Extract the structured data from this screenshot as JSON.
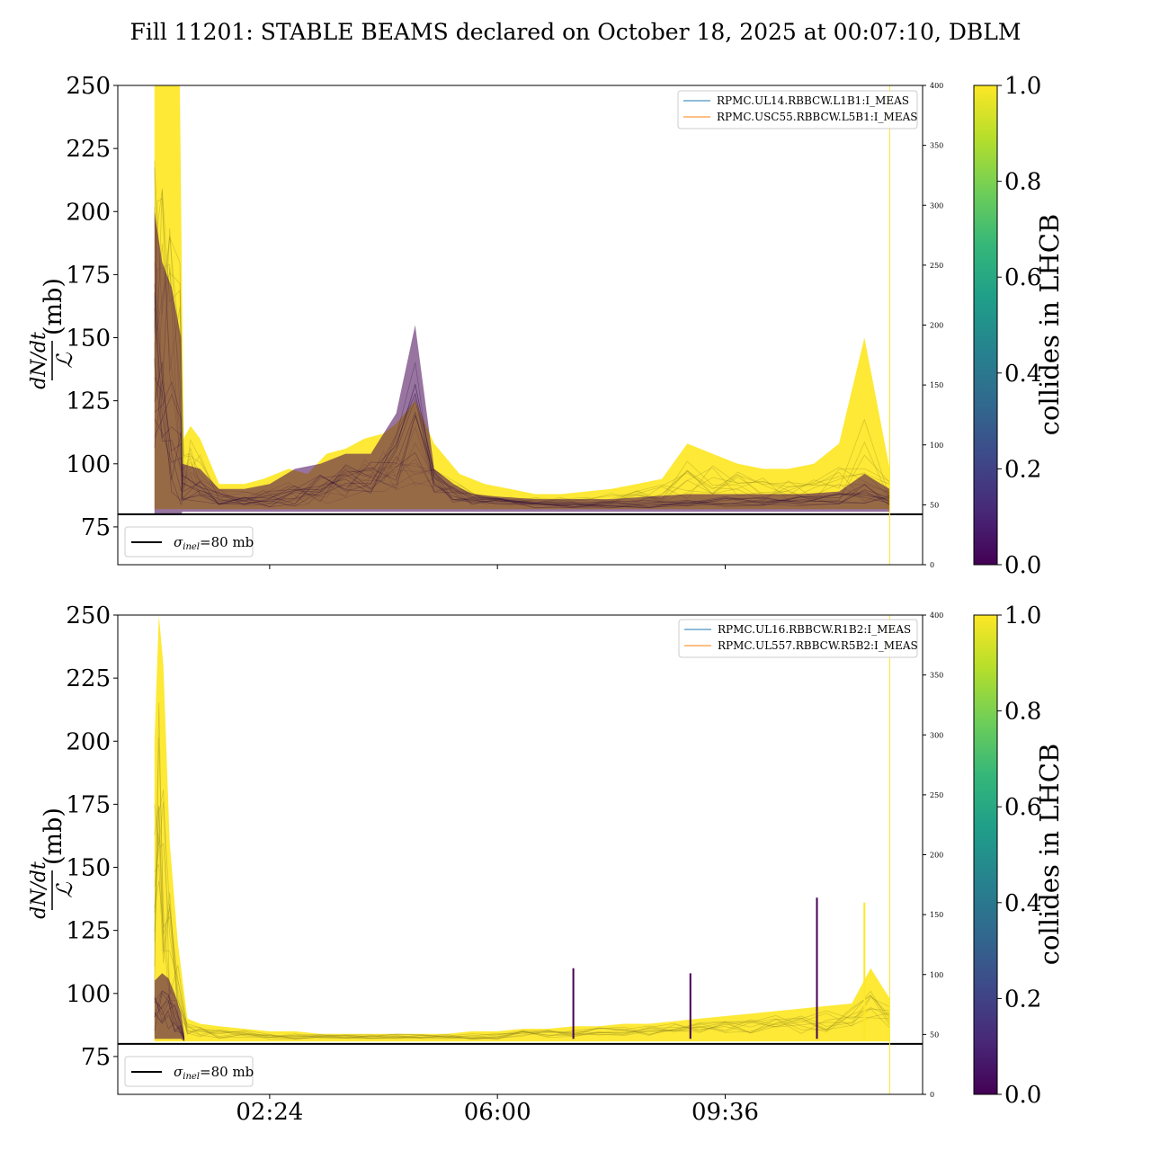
{
  "title": "Fill 11201: STABLE BEAMS declared on October 18, 2025 at 00:07:10, DBLM",
  "colors": {
    "viridis": [
      "#440154",
      "#482878",
      "#3e4989",
      "#31688e",
      "#26828e",
      "#1f9e89",
      "#35b779",
      "#6ece58",
      "#b5de2b",
      "#fde725"
    ],
    "collides": "#fde725",
    "non_collides": "#440154",
    "legend_line_blue": "#1f77b4",
    "legend_line_orange": "#ff7f0e",
    "reference_line": "#000000",
    "vertical_marker": "#fde725"
  },
  "chart_data": [
    {
      "type": "line",
      "panel": "top",
      "ylabel_fraction_top": "dN/dt",
      "ylabel_fraction_bottom": "ℒ",
      "ylabel_unit": "(mb)",
      "ylim": [
        60,
        250
      ],
      "yticks": [
        75,
        100,
        125,
        150,
        175,
        200,
        225,
        250
      ],
      "xlim": [
        0,
        12.72
      ],
      "xticks": [
        {
          "x": 2.4,
          "label": "02:24"
        },
        {
          "x": 6.0,
          "label": "06:00"
        },
        {
          "x": 9.6,
          "label": "09:36"
        }
      ],
      "xtick_labels_shown": false,
      "secondary_y": {
        "ylim": [
          0,
          400
        ],
        "yticks": [
          0,
          50,
          100,
          150,
          200,
          250,
          300,
          350,
          400
        ]
      },
      "reference_line": {
        "y": 80,
        "label_symbol": "σ",
        "label_subscript": "inel",
        "label_value": "=80 mb"
      },
      "vertical_marker_x": 12.2,
      "legend": [
        {
          "name": "RPMC.UL14.RBBCW.L1B1:I_MEAS",
          "color": "#1f77b4"
        },
        {
          "name": "RPMC.USC55.RBBCW.L5B1:I_MEAS",
          "color": "#ff7f0e"
        }
      ],
      "colorbar": {
        "label": "collides in LHCB",
        "range": [
          0.0,
          1.0
        ],
        "ticks": [
          "0.0",
          "0.2",
          "0.4",
          "0.6",
          "0.8",
          "1.0"
        ]
      },
      "series": [
        {
          "collides": 1,
          "x": [
            0.58,
            0.62,
            0.7,
            0.82,
            0.98,
            1.04,
            1.15,
            1.3,
            1.6,
            2.0,
            2.3,
            2.7,
            3.0,
            3.3,
            3.6,
            3.9,
            4.2,
            4.4,
            4.7,
            5.0,
            5.4,
            5.8,
            6.2,
            6.6,
            7.0,
            7.4,
            7.8,
            8.2,
            8.6,
            9.0,
            9.4,
            9.8,
            10.2,
            10.6,
            11.0,
            11.4,
            11.8,
            12.2
          ],
          "y_min": [
            82,
            82,
            82,
            82,
            82,
            82,
            82,
            82,
            82,
            82,
            82,
            82,
            82,
            82,
            82,
            82,
            82,
            82,
            82,
            82,
            82,
            82,
            82,
            82,
            82,
            82,
            82,
            82,
            82,
            82,
            82,
            82,
            82,
            82,
            82,
            82,
            82,
            82
          ],
          "y_max": [
            250,
            250,
            250,
            250,
            250,
            110,
            115,
            110,
            92,
            92,
            94,
            98,
            96,
            104,
            106,
            110,
            112,
            116,
            125,
            108,
            96,
            92,
            90,
            88,
            88,
            89,
            90,
            92,
            94,
            108,
            104,
            100,
            98,
            98,
            100,
            108,
            150,
            98
          ],
          "y_mid": [
            180,
            170,
            160,
            150,
            140,
            96,
            100,
            95,
            87,
            86,
            86,
            88,
            88,
            90,
            92,
            95,
            96,
            98,
            102,
            94,
            88,
            86,
            85,
            85,
            85,
            85,
            86,
            87,
            88,
            94,
            94,
            92,
            90,
            90,
            90,
            92,
            100,
            90
          ]
        },
        {
          "collides": 0,
          "x": [
            0.58,
            0.7,
            0.85,
            1.0,
            1.02,
            1.3,
            1.6,
            2.0,
            2.4,
            2.8,
            3.2,
            3.6,
            4.0,
            4.4,
            4.7,
            5.0,
            5.3,
            5.6,
            6.0,
            6.6,
            7.2,
            7.8,
            8.4,
            9.0,
            9.6,
            10.2,
            10.8,
            11.4,
            11.8,
            12.2
          ],
          "y_min": [
            80,
            80,
            80,
            80,
            81,
            81,
            81,
            81,
            81,
            81,
            81,
            81,
            81,
            81,
            81,
            81,
            81,
            81,
            81,
            81,
            81,
            81,
            81,
            81,
            81,
            81,
            81,
            81,
            81,
            81
          ],
          "y_max": [
            200,
            180,
            170,
            150,
            100,
            98,
            90,
            90,
            92,
            98,
            100,
            104,
            104,
            120,
            155,
            98,
            92,
            88,
            87,
            86,
            86,
            86,
            87,
            88,
            88,
            88,
            88,
            89,
            96,
            90
          ],
          "y_mid": [
            140,
            120,
            110,
            100,
            90,
            90,
            86,
            86,
            86,
            88,
            90,
            94,
            94,
            100,
            120,
            92,
            88,
            86,
            85,
            84,
            84,
            84,
            84,
            85,
            85,
            85,
            85,
            86,
            88,
            86
          ]
        }
      ]
    },
    {
      "type": "line",
      "panel": "bottom",
      "ylabel_fraction_top": "dN/dt",
      "ylabel_fraction_bottom": "ℒ",
      "ylabel_unit": "(mb)",
      "ylim": [
        60,
        250
      ],
      "yticks": [
        75,
        100,
        125,
        150,
        175,
        200,
        225,
        250
      ],
      "xlim": [
        0,
        12.72
      ],
      "xticks": [
        {
          "x": 2.4,
          "label": "02:24"
        },
        {
          "x": 6.0,
          "label": "06:00"
        },
        {
          "x": 9.6,
          "label": "09:36"
        }
      ],
      "xtick_labels_shown": true,
      "secondary_y": {
        "ylim": [
          0,
          400
        ],
        "yticks": [
          0,
          50,
          100,
          150,
          200,
          250,
          300,
          350,
          400
        ]
      },
      "reference_line": {
        "y": 80,
        "label_symbol": "σ",
        "label_subscript": "inel",
        "label_value": "=80 mb"
      },
      "vertical_marker_x": 12.2,
      "legend": [
        {
          "name": "RPMC.UL16.RBBCW.R1B2:I_MEAS",
          "color": "#1f77b4"
        },
        {
          "name": "RPMC.UL557.RBBCW.R5B2:I_MEAS",
          "color": "#ff7f0e"
        }
      ],
      "colorbar": {
        "label": "collides in LHCB",
        "range": [
          0.0,
          1.0
        ],
        "ticks": [
          "0.0",
          "0.2",
          "0.4",
          "0.6",
          "0.8",
          "1.0"
        ]
      },
      "series": [
        {
          "collides": 1,
          "x": [
            0.58,
            0.65,
            0.72,
            0.82,
            0.95,
            1.1,
            1.3,
            1.6,
            2.0,
            2.4,
            2.8,
            3.2,
            3.6,
            4.0,
            4.4,
            4.8,
            5.2,
            5.6,
            6.0,
            6.4,
            6.8,
            7.2,
            7.6,
            8.0,
            8.4,
            8.8,
            9.2,
            9.6,
            10.0,
            10.4,
            10.8,
            11.2,
            11.6,
            11.9,
            12.2
          ],
          "y_min": [
            81,
            81,
            81,
            81,
            81,
            81,
            81,
            81,
            81,
            81,
            81,
            81,
            81,
            81,
            81,
            81,
            81,
            81,
            81,
            81,
            81,
            81,
            81,
            81,
            81,
            81,
            81,
            81,
            81,
            81,
            81,
            81,
            81,
            81,
            81
          ],
          "y_max": [
            200,
            250,
            230,
            160,
            120,
            90,
            88,
            87,
            86,
            85,
            85,
            84,
            84,
            84,
            84,
            84,
            84,
            85,
            85,
            86,
            86,
            87,
            87,
            88,
            88,
            89,
            90,
            91,
            92,
            93,
            94,
            95,
            96,
            110,
            98
          ],
          "y_mid": [
            140,
            170,
            150,
            120,
            100,
            86,
            85,
            84,
            84,
            83,
            83,
            83,
            83,
            83,
            83,
            83,
            83,
            83,
            83,
            84,
            84,
            84,
            85,
            85,
            85,
            86,
            86,
            87,
            87,
            88,
            88,
            89,
            90,
            94,
            90
          ]
        },
        {
          "collides": 0,
          "x": [
            0.58,
            0.7,
            0.8,
            0.9,
            1.0,
            1.05
          ],
          "y_min": [
            82,
            82,
            82,
            82,
            82,
            81
          ],
          "y_max": [
            105,
            108,
            106,
            100,
            92,
            84
          ],
          "y_mid": [
            92,
            94,
            93,
            90,
            86,
            82
          ]
        }
      ],
      "spikes": [
        {
          "x": 7.2,
          "y": 110,
          "collides": 0
        },
        {
          "x": 9.05,
          "y": 108,
          "collides": 0
        },
        {
          "x": 11.05,
          "y": 138,
          "collides": 0
        },
        {
          "x": 11.8,
          "y": 136,
          "collides": 1
        }
      ]
    }
  ]
}
